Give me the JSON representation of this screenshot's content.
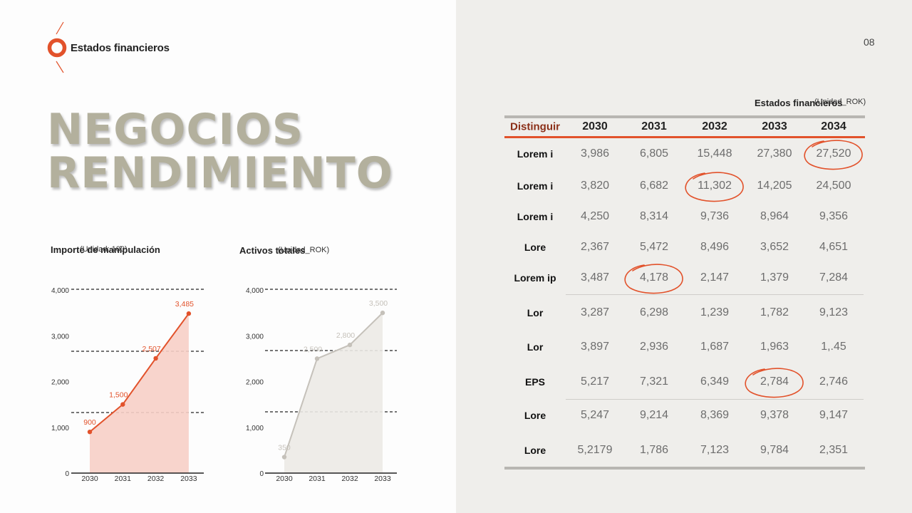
{
  "header": {
    "section_title": "Estados financieros",
    "page_number": "08",
    "accent_color": "#e2522b"
  },
  "hero": {
    "line1": "NEGOCIOS",
    "line2": "RENDIMIENTO"
  },
  "chart_data": [
    {
      "type": "area",
      "title": "Importe de manipulación",
      "unit": "(Unidad: 100)",
      "categories": [
        "2030",
        "2031",
        "2032",
        "2033"
      ],
      "series": [
        {
          "values": [
            900,
            1500,
            2507,
            3485
          ]
        }
      ],
      "data_labels": [
        "900",
        "1,500",
        "2,507",
        "3,485"
      ],
      "y_ticks": [
        "0",
        "1,000",
        "2,000",
        "3,000",
        "4,000"
      ],
      "ylim": [
        0,
        4000
      ],
      "color": "#e2522b",
      "fill_color": "#f7cfc6"
    },
    {
      "type": "area",
      "title": "Activos totales",
      "unit": "(Unidad_ROK)",
      "categories": [
        "2030",
        "2031",
        "2032",
        "2033"
      ],
      "series": [
        {
          "values": [
            350,
            2500,
            2800,
            3500
          ]
        }
      ],
      "data_labels": [
        "350",
        "2,500",
        "2,800",
        "3,500"
      ],
      "y_ticks": [
        "0",
        "1,000",
        "2,000",
        "3,000",
        "4,000"
      ],
      "ylim": [
        0,
        4000
      ],
      "color": "#c5c1ba",
      "fill_color": "#eceae6"
    }
  ],
  "table": {
    "caption": "Estados financieros",
    "unit": "(Unidad_ROK)",
    "headers": [
      "Distinguir",
      "2030",
      "2031",
      "2032",
      "2033",
      "2034"
    ],
    "rows": [
      {
        "label": "Lorem i",
        "values": [
          "3,986",
          "6,805",
          "15,448",
          "27,380",
          "27,520"
        ]
      },
      {
        "label": "Lorem i",
        "values": [
          "3,820",
          "6,682",
          "11,302",
          "14,205",
          "24,500"
        ]
      },
      {
        "label": "Lorem i",
        "values": [
          "4,250",
          "8,314",
          "9,736",
          "8,964",
          "9,356"
        ]
      },
      {
        "label": "Lore",
        "values": [
          "2,367",
          "5,472",
          "8,496",
          "3,652",
          "4,651"
        ]
      },
      {
        "label": "Lorem ip",
        "values": [
          "3,487",
          "4,178",
          "2,147",
          "1,379",
          "7,284"
        ]
      },
      {
        "label": "Lor",
        "values": [
          "3,287",
          "6,298",
          "1,239",
          "1,782",
          "9,123"
        ]
      },
      {
        "label": "Lor",
        "values": [
          "3,897",
          "2,936",
          "1,687",
          "1,963",
          "1,.45"
        ]
      },
      {
        "label": "EPS",
        "values": [
          "5,217",
          "7,321",
          "6,349",
          "2,784",
          "2,746"
        ]
      },
      {
        "label": "Lore",
        "values": [
          "5,247",
          "9,214",
          "8,369",
          "9,378",
          "9,147"
        ]
      },
      {
        "label": "Lore",
        "values": [
          "5,2179",
          "1,786",
          "7,123",
          "9,784",
          "2,351"
        ]
      }
    ],
    "highlight_color": "#e2522b"
  }
}
